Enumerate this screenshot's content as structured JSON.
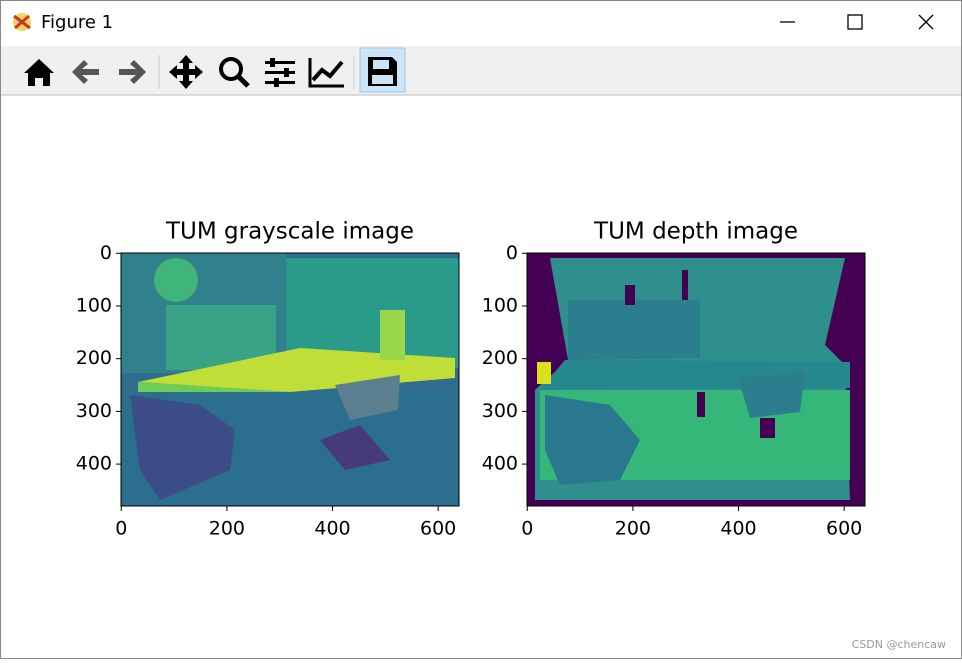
{
  "window": {
    "title": "Figure 1"
  },
  "watermark": "CSDN @chencaw",
  "figure": {
    "axes": [
      {
        "title": "TUM grayscale image",
        "xlim": [
          -0.5,
          639.5
        ],
        "ylim": [
          479.5,
          -0.5
        ],
        "xticks": [
          0,
          200,
          400,
          600
        ],
        "yticks": [
          0,
          100,
          200,
          300,
          400
        ]
      },
      {
        "title": "TUM depth image",
        "xlim": [
          -0.5,
          639.5
        ],
        "ylim": [
          479.5,
          -0.5
        ],
        "xticks": [
          0,
          200,
          400,
          600
        ],
        "yticks": [
          0,
          100,
          200,
          300,
          400
        ]
      }
    ]
  }
}
